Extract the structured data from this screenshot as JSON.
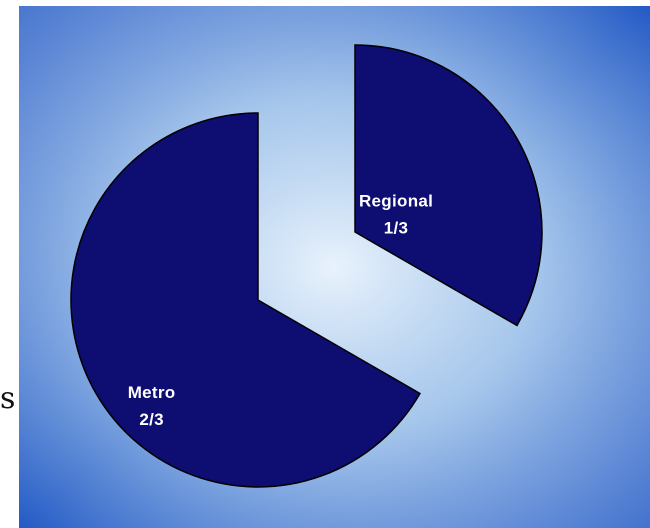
{
  "colors": {
    "slice_fill": "#0d0d72",
    "slice_stroke": "#000000",
    "background_edge": "#1f56c4",
    "background_center": "#e8f2fc"
  },
  "stray_glyph": "s",
  "chart_data": {
    "type": "pie",
    "title": "",
    "slices": [
      {
        "category": "Regional",
        "value": 0.3333,
        "value_label": "1/3",
        "exploded": true
      },
      {
        "category": "Metro",
        "value": 0.6667,
        "value_label": "2/3",
        "exploded": false
      }
    ],
    "legend": "none",
    "data_labels": "inside"
  }
}
